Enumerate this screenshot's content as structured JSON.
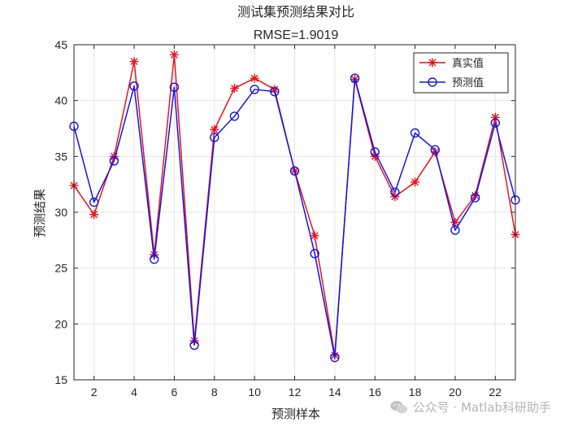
{
  "chart_data": {
    "type": "line",
    "title": "测试集预测结果对比",
    "subtitle": "RMSE=1.9019",
    "xlabel": "预测样本",
    "ylabel": "预测结果",
    "xlim": [
      1,
      23
    ],
    "ylim": [
      15,
      45
    ],
    "xticks": [
      2,
      4,
      6,
      8,
      10,
      12,
      14,
      16,
      18,
      20,
      22
    ],
    "yticks": [
      15,
      20,
      25,
      30,
      35,
      40,
      45
    ],
    "grid": true,
    "legend_position": "top-right",
    "x": [
      1,
      2,
      3,
      4,
      5,
      6,
      7,
      8,
      9,
      10,
      11,
      12,
      13,
      14,
      15,
      16,
      17,
      18,
      19,
      20,
      21,
      22,
      23
    ],
    "series": [
      {
        "name": "真实值",
        "color": "#e8141c",
        "marker": "asterisk",
        "values": [
          32.4,
          29.8,
          35.0,
          43.5,
          26.2,
          44.1,
          18.5,
          37.4,
          41.1,
          42.0,
          41.0,
          33.7,
          27.9,
          17.2,
          41.9,
          35.0,
          31.4,
          32.7,
          35.4,
          29.1,
          31.5,
          38.5,
          28.0
        ]
      },
      {
        "name": "预测值",
        "color": "#1414e6",
        "marker": "circle",
        "values": [
          37.7,
          30.9,
          34.6,
          41.3,
          25.8,
          41.2,
          18.1,
          36.7,
          38.6,
          41.0,
          40.8,
          33.7,
          26.3,
          17.0,
          42.0,
          35.4,
          31.8,
          37.1,
          35.6,
          28.4,
          31.3,
          38.0,
          31.1
        ]
      }
    ]
  },
  "watermark": {
    "text": "公众号 · Matlab科研助手",
    "icon": "wechat-icon"
  }
}
